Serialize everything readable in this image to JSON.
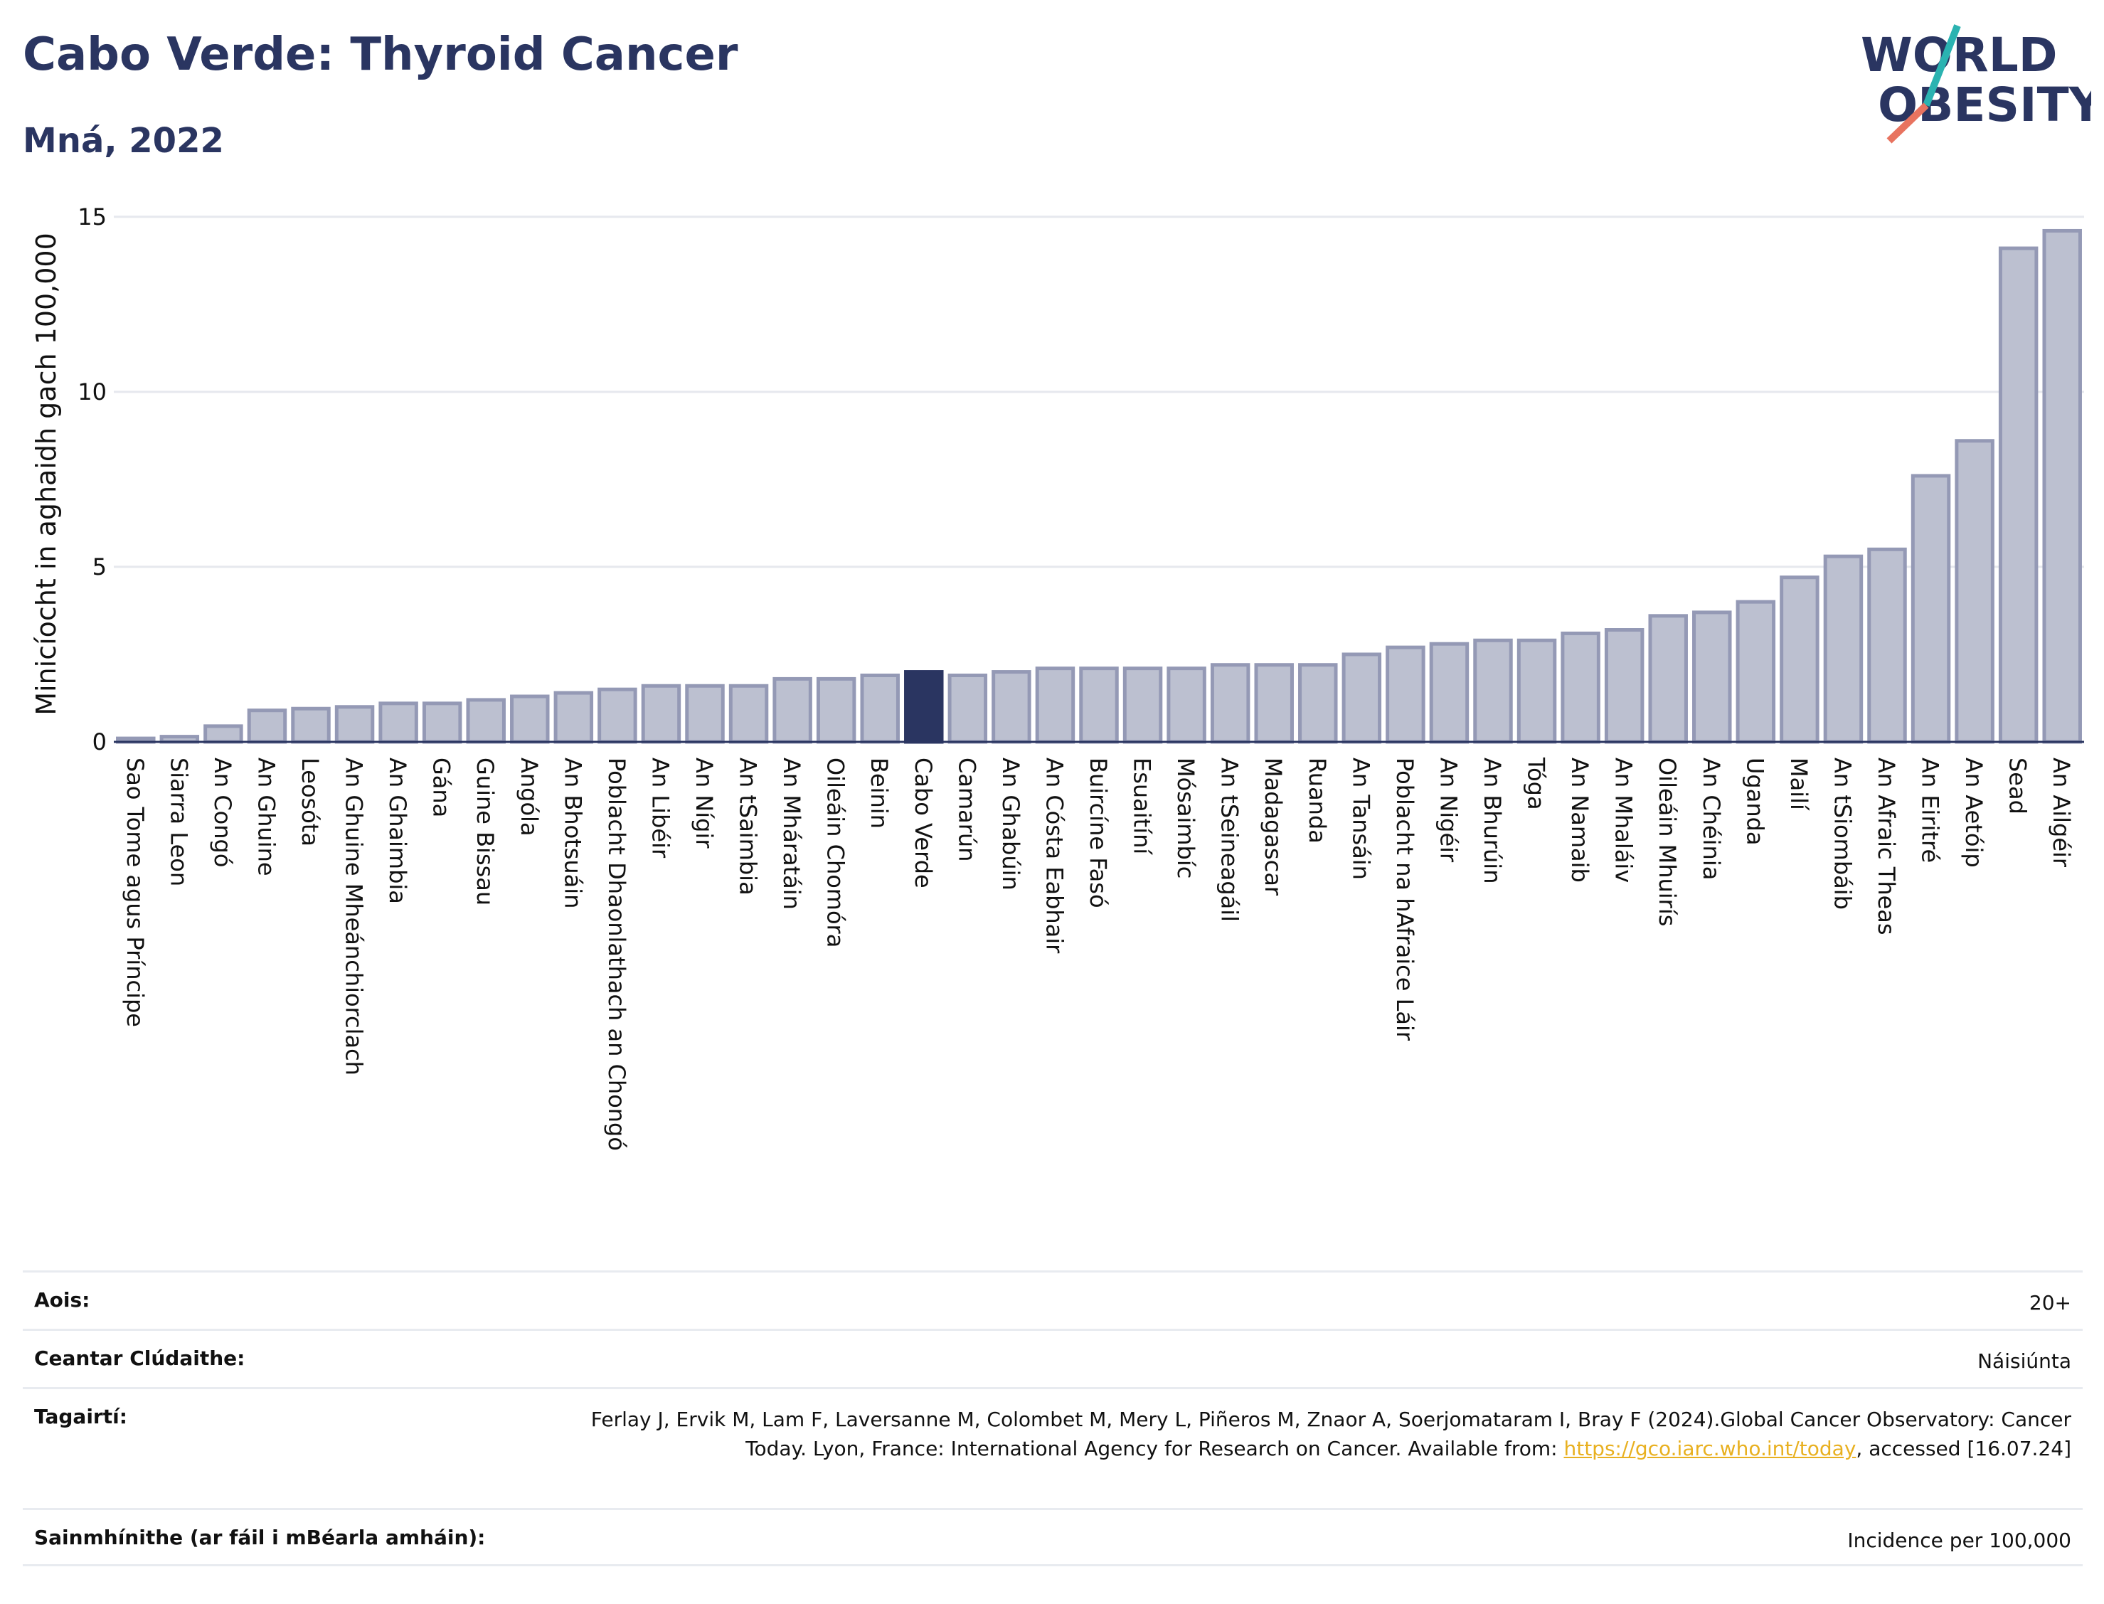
{
  "header": {
    "title": "Cabo Verde: Thyroid Cancer",
    "subtitle": "Mná, 2022"
  },
  "logo": {
    "line1": "WORLD",
    "line2": "OBESITY",
    "accent_teal": "#2bb3b1",
    "accent_coral": "#e8735f",
    "text_color": "#2a3561"
  },
  "chart_data": {
    "type": "bar",
    "ylabel": "Minicíocht in aghaidh gach 100,000",
    "xlabel": "",
    "ylim": [
      0,
      15.3
    ],
    "yticks": [
      0,
      5,
      10,
      15
    ],
    "grid": true,
    "highlight": "Cabo Verde",
    "colors": {
      "bar": "#bcc0d0",
      "bar_edge": "#9499b5",
      "highlight": "#2a3561"
    },
    "categories": [
      "Sao Tome agus Príncipe",
      "Siarra Leon",
      "An Congó",
      "An Ghuine",
      "Leosóta",
      "An Ghuine Mheánchiorclach",
      "An Ghaimbia",
      "Gána",
      "Guine Bissau",
      "Angóla",
      "An Bhotsuáin",
      "Poblacht Dhaonlathach an Chongó",
      "An Libéir",
      "An Nígir",
      "An tSaimbia",
      "An Mháratáin",
      "Oileáin Chomóra",
      "Beinin",
      "Cabo Verde",
      "Camarún",
      "An Ghabúin",
      "An Cósta Eabhair",
      "Buircíne Fasó",
      "Esuaitíní",
      "Mósaimbíc",
      "An tSeineagáil",
      "Madagascar",
      "Ruanda",
      "An Tansáin",
      "Poblacht na hAfraice Láir",
      "An Nigéir",
      "An Bhurúin",
      "Tóga",
      "An Namaib",
      "An Mhaláiv",
      "Oileáin Mhuirís",
      "An Chéinia",
      "Uganda",
      "Mailí",
      "An tSiombáib",
      "An Afraic Theas",
      "An Eiritré",
      "An Aetóip",
      "Sead",
      "An Ailgéir"
    ],
    "values": [
      0.1,
      0.15,
      0.45,
      0.9,
      0.95,
      1.0,
      1.1,
      1.1,
      1.2,
      1.3,
      1.4,
      1.5,
      1.6,
      1.6,
      1.6,
      1.8,
      1.8,
      1.9,
      2.0,
      1.9,
      2.0,
      2.1,
      2.1,
      2.1,
      2.1,
      2.2,
      2.2,
      2.2,
      2.5,
      2.7,
      2.8,
      2.9,
      2.9,
      3.1,
      3.2,
      3.6,
      3.7,
      4.0,
      4.7,
      5.3,
      5.5,
      7.6,
      8.6,
      14.1,
      14.6
    ]
  },
  "info": [
    {
      "label": "Aois:",
      "value": "20+"
    },
    {
      "label": "Ceantar Clúdaithe:",
      "value": "Náisiúnta"
    },
    {
      "label": "Tagairtí:",
      "value_pre": "Ferlay J, Ervik M, Lam F, Laversanne M, Colombet M, Mery L, Piñeros M, Znaor A, Soerjomataram I, Bray F (2024).Global Cancer Observatory: Cancer Today. Lyon, France: International Agency for Research on Cancer. Available from: ",
      "link": "https://gco.iarc.who.int/today",
      "value_post": ", accessed [16.07.24]"
    },
    {
      "label": "Sainmhínithe (ar fáil i mBéarla amháin):",
      "value": "Incidence per 100,000"
    }
  ]
}
